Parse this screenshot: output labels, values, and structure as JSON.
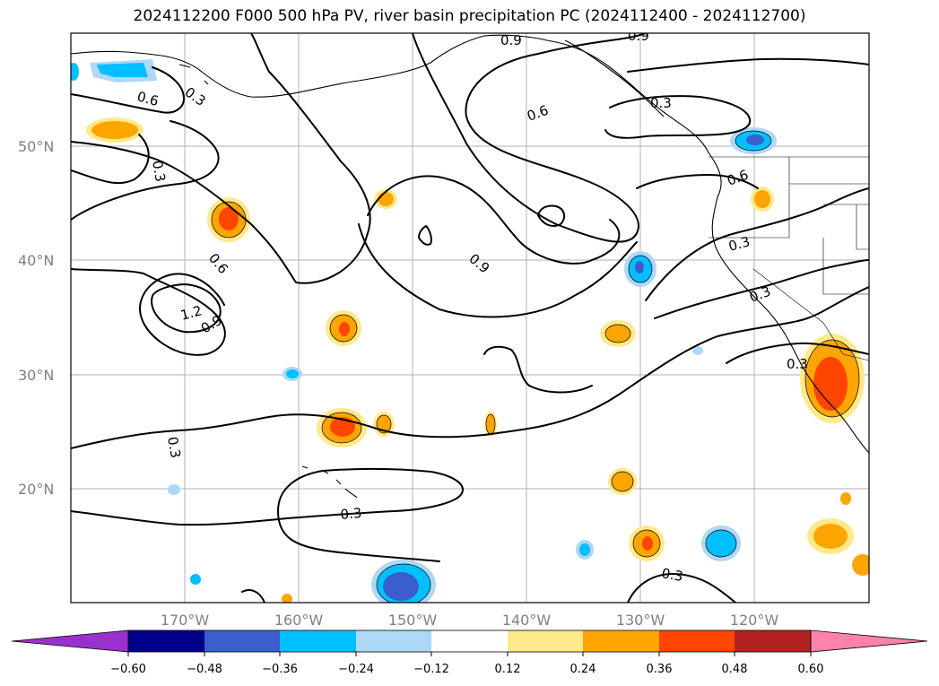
{
  "title": "2024112200 F000 500 hPa PV, river basin precipitation PC (2024112400 - 2024112700)",
  "lat_labels": [
    "50°N",
    "40°N",
    "30°N",
    "20°N"
  ],
  "lon_labels": [
    "170°W",
    "160°W",
    "150°W",
    "140°W",
    "130°W",
    "120°W"
  ],
  "colorbar": {
    "tick_labels": [
      "−0.60",
      "−0.48",
      "−0.36",
      "−0.24",
      "−0.12",
      "0.12",
      "0.24",
      "0.36",
      "0.48",
      "0.60"
    ],
    "colors": [
      "#9932cc",
      "#00008b",
      "#3a5fcd",
      "#00bfff",
      "#add8f6",
      "#ffffff",
      "#ffe98a",
      "#ffa500",
      "#ff4500",
      "#b22222",
      "#ff82ab"
    ]
  },
  "contour_labels": [
    "0.9",
    "0.9",
    "0.6",
    "0.3",
    "0.6",
    "0.3",
    "0.3",
    "0.6",
    "0.6",
    "0.3",
    "0.9",
    "0.3",
    "1.2",
    "0.9",
    "0.3",
    "0.3",
    "0.3",
    "0.3"
  ]
}
